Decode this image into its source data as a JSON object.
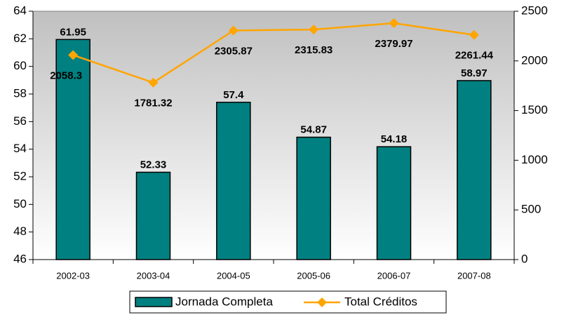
{
  "chart_data": {
    "type": "bar_line",
    "categories": [
      "2002-03",
      "2003-04",
      "2004-05",
      "2005-06",
      "2006-07",
      "2007-08"
    ],
    "series": [
      {
        "name": "Jornada Completa",
        "type": "bar",
        "color": "#008080",
        "values": [
          61.95,
          52.33,
          57.4,
          54.87,
          54.18,
          58.97
        ]
      },
      {
        "name": "Total Créditos",
        "type": "line",
        "axis": "y2",
        "color": "#FFA500",
        "values": [
          2058.3,
          1781.32,
          2305.87,
          2315.83,
          2379.97,
          2261.44
        ]
      }
    ],
    "ylim": [
      46,
      64
    ],
    "yticks": [
      46,
      48,
      50,
      52,
      54,
      56,
      58,
      60,
      62,
      64
    ],
    "y2lim": [
      0,
      2500
    ],
    "y2ticks": [
      0,
      500,
      1000,
      1500,
      2000,
      2500
    ],
    "legend": "bottom"
  }
}
